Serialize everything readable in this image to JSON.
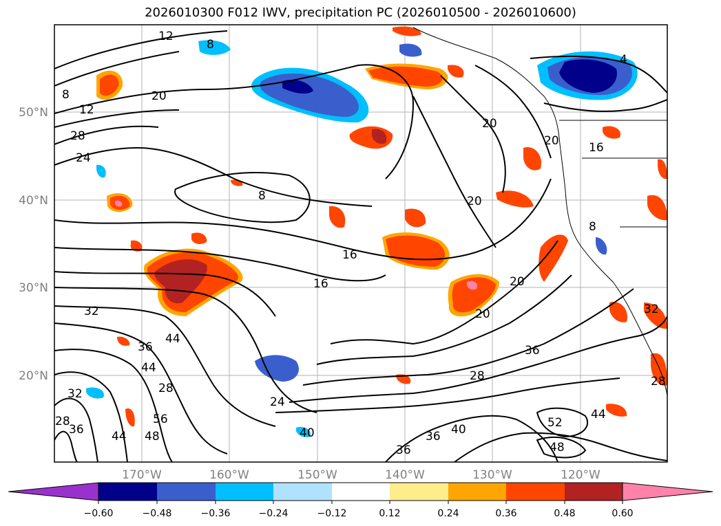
{
  "title": "2026010300 F012 IWV, precipitation PC (2026010500 - 2026010600)",
  "map": {
    "lat_labels": [
      "50°N",
      "40°N",
      "30°N",
      "20°N"
    ],
    "lon_labels": [
      "170°W",
      "160°W",
      "150°W",
      "140°W",
      "130°W",
      "120°W"
    ],
    "contour_labels": [
      "12",
      "8",
      "20",
      "8",
      "12",
      "28",
      "24",
      "4",
      "20",
      "20",
      "16",
      "8",
      "20",
      "8",
      "16",
      "16",
      "20",
      "20",
      "32",
      "36",
      "44",
      "44",
      "32",
      "28",
      "32",
      "28",
      "36",
      "56",
      "44",
      "48",
      "24",
      "40",
      "36",
      "36",
      "40",
      "28",
      "36",
      "52",
      "44",
      "48",
      "28"
    ]
  },
  "colorbar": {
    "ticks": [
      "−0.60",
      "−0.48",
      "−0.36",
      "−0.24",
      "−0.12",
      "0.12",
      "0.24",
      "0.36",
      "0.48",
      "0.60"
    ],
    "colors": [
      "#9932cc",
      "#00008b",
      "#3a5fcd",
      "#00bfff",
      "#b0e2ff",
      "#ffffff",
      "#ffec8b",
      "#ffa500",
      "#ff4500",
      "#b22222",
      "#ff82ab"
    ]
  }
}
